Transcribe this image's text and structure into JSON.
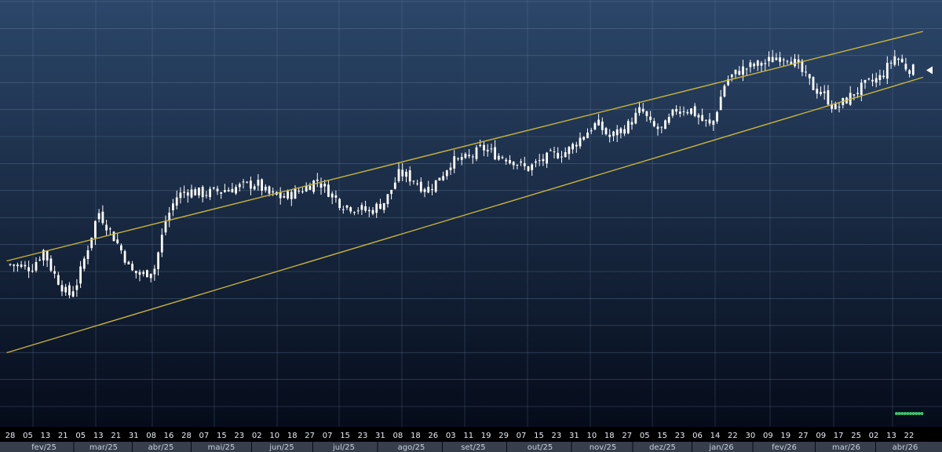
{
  "chart_data": {
    "type": "candlestick",
    "title": "",
    "xlabel": "",
    "ylabel": "",
    "grid": true,
    "legend": "none",
    "y_axis": "hidden",
    "colors": {
      "background_top": "#2c476a",
      "background_bottom": "#030815",
      "candle": "#ffffff",
      "channel_line": "#c8b53c",
      "grid": "#6f86a6",
      "indicator_dots": "#3ec46d",
      "axis_band": "#9aa3b1",
      "axis_text": "#e8ecf3",
      "last_price_marker": "#ffffff"
    },
    "ticks": [
      "28",
      "05",
      "13",
      "21",
      "05",
      "13",
      "21",
      "31",
      "08",
      "16",
      "28",
      "07",
      "15",
      "23",
      "02",
      "10",
      "18",
      "27",
      "07",
      "15",
      "23",
      "31",
      "08",
      "18",
      "26",
      "03",
      "11",
      "19",
      "29",
      "07",
      "15",
      "23",
      "31",
      "10",
      "18",
      "27",
      "05",
      "15",
      "23",
      "06",
      "14",
      "22",
      "30",
      "09",
      "19",
      "27",
      "09",
      "17",
      "25",
      "02",
      "13",
      "22"
    ],
    "months": [
      "fev/25",
      "mar/25",
      "abr/25",
      "mai/25",
      "jun/25",
      "jul/25",
      "ago/25",
      "set/25",
      "out/25",
      "nov/25",
      "dez/25",
      "jan/26",
      "fev/26",
      "mar/26",
      "abr/26"
    ],
    "ylim": [
      0,
      100
    ],
    "close_path": [
      {
        "t": 0.0,
        "v": 34
      },
      {
        "t": 1.2,
        "v": 33
      },
      {
        "t": 1.9,
        "v": 38
      },
      {
        "t": 2.4,
        "v": 32
      },
      {
        "t": 3.3,
        "v": 25
      },
      {
        "t": 3.8,
        "v": 29
      },
      {
        "t": 4.6,
        "v": 42
      },
      {
        "t": 5.0,
        "v": 49
      },
      {
        "t": 5.6,
        "v": 44
      },
      {
        "t": 6.2,
        "v": 39
      },
      {
        "t": 6.9,
        "v": 32
      },
      {
        "t": 7.5,
        "v": 31
      },
      {
        "t": 8.2,
        "v": 33
      },
      {
        "t": 8.8,
        "v": 46
      },
      {
        "t": 9.4,
        "v": 53
      },
      {
        "t": 10.0,
        "v": 55
      },
      {
        "t": 11.0,
        "v": 54
      },
      {
        "t": 12.0,
        "v": 55
      },
      {
        "t": 13.0,
        "v": 56
      },
      {
        "t": 14.0,
        "v": 57
      },
      {
        "t": 14.6,
        "v": 54
      },
      {
        "t": 15.5,
        "v": 53
      },
      {
        "t": 16.5,
        "v": 55
      },
      {
        "t": 17.4,
        "v": 58
      },
      {
        "t": 18.0,
        "v": 55
      },
      {
        "t": 18.8,
        "v": 51
      },
      {
        "t": 19.6,
        "v": 50
      },
      {
        "t": 20.4,
        "v": 49
      },
      {
        "t": 21.3,
        "v": 52
      },
      {
        "t": 22.1,
        "v": 60
      },
      {
        "t": 22.9,
        "v": 58
      },
      {
        "t": 23.6,
        "v": 55
      },
      {
        "t": 24.3,
        "v": 58
      },
      {
        "t": 25.0,
        "v": 63
      },
      {
        "t": 26.0,
        "v": 64
      },
      {
        "t": 26.8,
        "v": 67
      },
      {
        "t": 27.6,
        "v": 65
      },
      {
        "t": 28.4,
        "v": 64
      },
      {
        "t": 29.3,
        "v": 61
      },
      {
        "t": 30.0,
        "v": 63
      },
      {
        "t": 30.8,
        "v": 65
      },
      {
        "t": 31.6,
        "v": 66
      },
      {
        "t": 32.6,
        "v": 71
      },
      {
        "t": 33.3,
        "v": 74
      },
      {
        "t": 34.0,
        "v": 70
      },
      {
        "t": 35.0,
        "v": 73
      },
      {
        "t": 35.8,
        "v": 78
      },
      {
        "t": 36.4,
        "v": 73
      },
      {
        "t": 37.0,
        "v": 72
      },
      {
        "t": 37.8,
        "v": 78
      },
      {
        "t": 38.6,
        "v": 78
      },
      {
        "t": 39.2,
        "v": 75
      },
      {
        "t": 39.8,
        "v": 73
      },
      {
        "t": 40.6,
        "v": 86
      },
      {
        "t": 41.4,
        "v": 89
      },
      {
        "t": 42.0,
        "v": 90
      },
      {
        "t": 42.8,
        "v": 91
      },
      {
        "t": 43.6,
        "v": 93
      },
      {
        "t": 44.2,
        "v": 93
      },
      {
        "t": 45.0,
        "v": 88
      },
      {
        "t": 45.6,
        "v": 84
      },
      {
        "t": 46.2,
        "v": 82
      },
      {
        "t": 46.8,
        "v": 78
      },
      {
        "t": 47.3,
        "v": 80
      },
      {
        "t": 48.0,
        "v": 83
      },
      {
        "t": 48.6,
        "v": 85
      },
      {
        "t": 49.4,
        "v": 87
      },
      {
        "t": 50.2,
        "v": 93
      },
      {
        "t": 50.8,
        "v": 90
      },
      {
        "t": 51.3,
        "v": 89
      }
    ],
    "channel_upper": {
      "t_start": -0.2,
      "v_start": 35,
      "t_end": 51.8,
      "v_end": 100
    },
    "channel_lower": {
      "t_start": -0.2,
      "v_start": 9,
      "t_end": 51.8,
      "v_end": 87
    },
    "indicator_dot_count": 10
  }
}
